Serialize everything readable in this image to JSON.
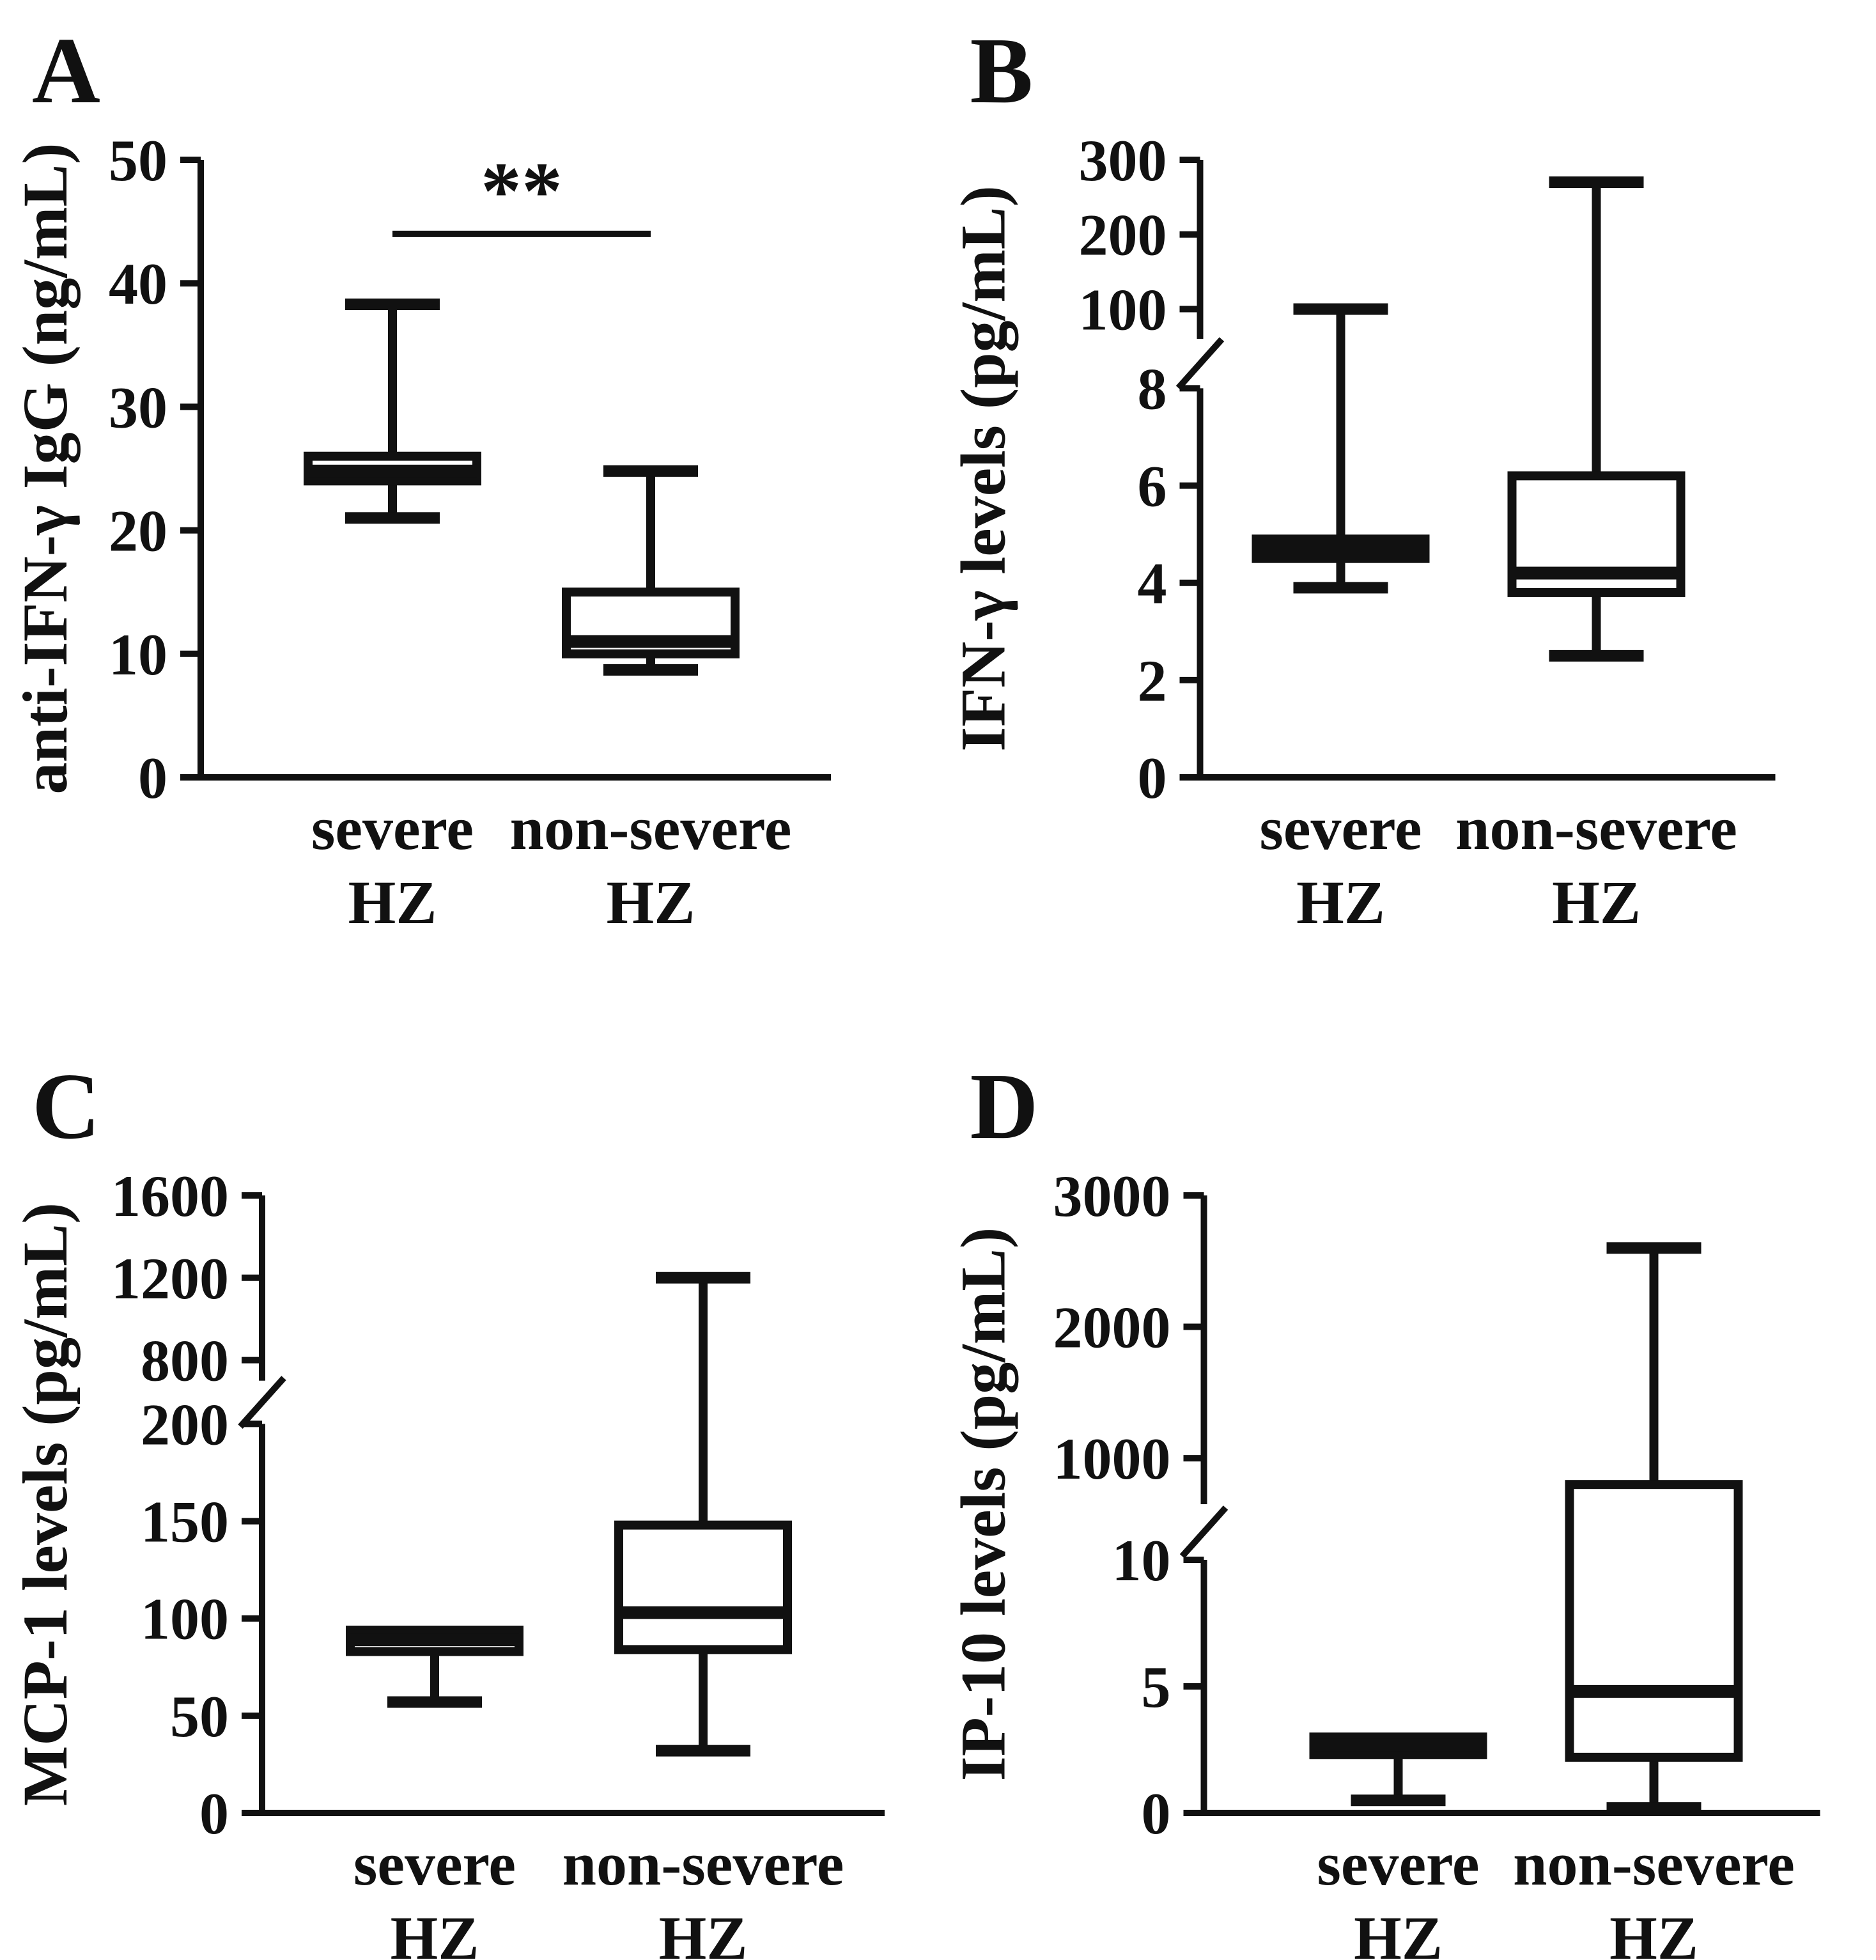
{
  "figure": {
    "background": "#ffffff",
    "ink": "#111111",
    "description": "Four-panel box-and-whisker figure comparing severe HZ vs non-severe HZ groups",
    "legend": "none",
    "grid": false
  },
  "chart_data": [
    {
      "panel": "A",
      "type": "box",
      "ylabel": "anti-IFN-γ IgG (ng/mL)",
      "xlabel": "",
      "categories": [
        [
          "severe",
          "HZ"
        ],
        [
          "non-severe",
          "HZ"
        ]
      ],
      "axis": {
        "gap_frac": 0,
        "segments": [
          {
            "min": 0,
            "max": 50,
            "ticks": [
              0,
              10,
              20,
              30,
              40,
              50
            ],
            "frac": 1.0
          }
        ]
      },
      "boxes": [
        {
          "group": "severe HZ",
          "whisker_low": 21,
          "q1": 24,
          "median": 24.8,
          "q3": 26,
          "whisker_high": 38.3
        },
        {
          "group": "non-severe HZ",
          "whisker_low": 8.7,
          "q1": 10,
          "median": 11,
          "q3": 15,
          "whisker_high": 24.8
        }
      ],
      "significance": {
        "label": "**",
        "y_value": 44,
        "between": [
          "severe HZ",
          "non-severe HZ"
        ]
      }
    },
    {
      "panel": "B",
      "type": "box",
      "ylabel": "IFN-γ levels (pg/mL)",
      "xlabel": "",
      "categories": [
        [
          "severe",
          "HZ"
        ],
        [
          "non-severe",
          "HZ"
        ]
      ],
      "axis": {
        "gap_frac": 0.08,
        "segments": [
          {
            "min": 0,
            "max": 8,
            "ticks": [
              0,
              2,
              4,
              6,
              8
            ],
            "frac": 0.63
          },
          {
            "min": 60,
            "max": 300,
            "ticks": [
              100,
              200,
              300
            ],
            "frac": 0.29
          }
        ]
      },
      "boxes": [
        {
          "group": "severe HZ",
          "whisker_low": 3.9,
          "q1": 4.5,
          "median": 4.7,
          "q3": 4.9,
          "whisker_high": 100
        },
        {
          "group": "non-severe HZ",
          "whisker_low": 2.5,
          "q1": 3.8,
          "median": 4.2,
          "q3": 6.2,
          "whisker_high": 270
        }
      ],
      "significance": null
    },
    {
      "panel": "C",
      "type": "box",
      "ylabel": "MCP-1 levels (pg/mL)",
      "xlabel": "",
      "categories": [
        [
          "severe",
          "HZ"
        ],
        [
          "non-severe",
          "HZ"
        ]
      ],
      "axis": {
        "gap_frac": 0.07,
        "segments": [
          {
            "min": 0,
            "max": 200,
            "ticks": [
              0,
              50,
              100,
              150,
              200
            ],
            "frac": 0.63
          },
          {
            "min": 700,
            "max": 1600,
            "ticks": [
              800,
              1200,
              1600
            ],
            "frac": 0.3
          }
        ]
      },
      "boxes": [
        {
          "group": "severe HZ",
          "whisker_low": 57,
          "q1": 83,
          "median": 89,
          "q3": 94,
          "whisker_high": 94
        },
        {
          "group": "non-severe HZ",
          "whisker_low": 32,
          "q1": 84,
          "median": 103,
          "q3": 148,
          "whisker_high": 1200
        }
      ],
      "significance": null
    },
    {
      "panel": "D",
      "type": "box",
      "ylabel": "IP-10 levels (pg/mL)",
      "xlabel": "",
      "categories": [
        [
          "severe",
          "HZ"
        ],
        [
          "non-severe",
          "HZ"
        ]
      ],
      "axis": {
        "gap_frac": 0.09,
        "segments": [
          {
            "min": 0,
            "max": 10,
            "ticks": [
              0,
              5,
              10
            ],
            "frac": 0.41
          },
          {
            "min": 650,
            "max": 3000,
            "ticks": [
              1000,
              2000,
              3000
            ],
            "frac": 0.5
          }
        ]
      },
      "boxes": [
        {
          "group": "severe HZ",
          "whisker_low": 0.5,
          "q1": 2.3,
          "median": 2.7,
          "q3": 3.0,
          "whisker_high": 3.0
        },
        {
          "group": "non-severe HZ",
          "whisker_low": 0.2,
          "q1": 2.2,
          "median": 4.8,
          "q3": 800,
          "whisker_high": 2600
        }
      ],
      "significance": null
    }
  ]
}
